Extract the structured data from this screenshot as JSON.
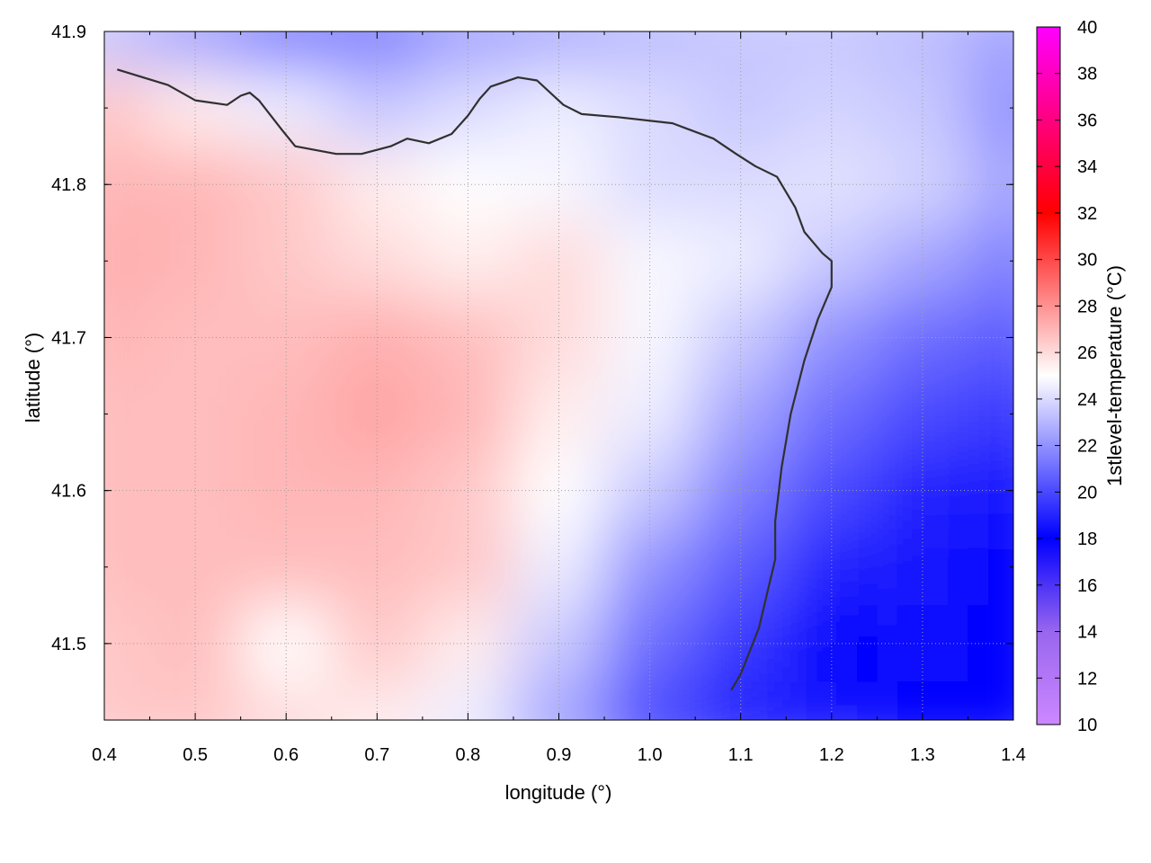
{
  "chart_data": {
    "type": "heatmap",
    "title": "",
    "xlabel": "longitude (°)",
    "ylabel": "latitude (°)",
    "colorbar_label": "1stlevel-temperature (°C)",
    "xlim": [
      0.4,
      1.4
    ],
    "ylim": [
      41.45,
      41.9
    ],
    "zlim": [
      10,
      40
    ],
    "x_ticks": [
      "0.4",
      "0.5",
      "0.6",
      "0.7",
      "0.8",
      "0.9",
      "1.0",
      "1.1",
      "1.2",
      "1.3",
      "1.4"
    ],
    "y_ticks": [
      "41.5",
      "41.6",
      "41.7",
      "41.8",
      "41.9"
    ],
    "colorbar_ticks": [
      "10",
      "12",
      "14",
      "16",
      "18",
      "20",
      "22",
      "24",
      "26",
      "28",
      "30",
      "32",
      "34",
      "36",
      "38",
      "40"
    ],
    "colormap": [
      {
        "value": 10,
        "color": "#cc88ff"
      },
      {
        "value": 14,
        "color": "#9966ee"
      },
      {
        "value": 18,
        "color": "#0000ff"
      },
      {
        "value": 25,
        "color": "#ffffff"
      },
      {
        "value": 32,
        "color": "#ff0000"
      },
      {
        "value": 40,
        "color": "#ff00ff"
      }
    ],
    "grid": true,
    "grid_lons": [
      0.4,
      0.5,
      0.6,
      0.7,
      0.8,
      0.9,
      1.0,
      1.1,
      1.2,
      1.3,
      1.4
    ],
    "grid_lats": [
      41.9,
      41.85,
      41.8,
      41.75,
      41.7,
      41.65,
      41.6,
      41.55,
      41.5,
      41.45
    ],
    "temperature_grid": [
      [
        23.5,
        22.5,
        21.5,
        21.5,
        22.5,
        22.8,
        23.2,
        23.5,
        23.5,
        23.2,
        22.5
      ],
      [
        26.5,
        25.5,
        24.5,
        23.5,
        24.0,
        24.5,
        24.0,
        23.5,
        23.8,
        23.5,
        22.0
      ],
      [
        27.0,
        27.0,
        26.5,
        25.5,
        25.0,
        24.8,
        24.0,
        24.0,
        24.2,
        23.8,
        22.5
      ],
      [
        27.2,
        27.0,
        26.5,
        26.0,
        25.5,
        26.0,
        24.8,
        24.5,
        23.5,
        22.5,
        21.5
      ],
      [
        27.0,
        26.8,
        26.8,
        27.2,
        26.8,
        26.0,
        24.8,
        23.5,
        22.0,
        21.0,
        20.5
      ],
      [
        26.8,
        26.8,
        27.0,
        27.5,
        27.0,
        25.5,
        24.5,
        22.5,
        21.0,
        20.0,
        19.5
      ],
      [
        26.8,
        26.8,
        27.0,
        27.0,
        26.5,
        25.0,
        23.5,
        21.5,
        20.0,
        19.0,
        18.5
      ],
      [
        26.8,
        26.8,
        26.8,
        26.8,
        26.5,
        24.5,
        22.0,
        20.5,
        19.0,
        18.5,
        18.0
      ],
      [
        26.5,
        26.8,
        25.0,
        26.5,
        25.5,
        23.5,
        21.0,
        19.5,
        18.0,
        18.2,
        18.0
      ],
      [
        26.5,
        26.5,
        26.0,
        25.5,
        24.5,
        22.5,
        20.0,
        19.0,
        18.5,
        18.0,
        18.0
      ]
    ],
    "contours": [
      [
        [
          0.415,
          41.875
        ],
        [
          0.47,
          41.865
        ],
        [
          0.5,
          41.855
        ],
        [
          0.535,
          41.852
        ],
        [
          0.55,
          41.858
        ],
        [
          0.56,
          41.86
        ],
        [
          0.57,
          41.855
        ],
        [
          0.595,
          41.836
        ],
        [
          0.61,
          41.825
        ],
        [
          0.655,
          41.82
        ],
        [
          0.683,
          41.82
        ],
        [
          0.715,
          41.825
        ],
        [
          0.733,
          41.83
        ],
        [
          0.757,
          41.827
        ],
        [
          0.782,
          41.833
        ],
        [
          0.8,
          41.845
        ],
        [
          0.813,
          41.856
        ],
        [
          0.825,
          41.864
        ],
        [
          0.855,
          41.87
        ],
        [
          0.876,
          41.868
        ],
        [
          0.905,
          41.852
        ],
        [
          0.925,
          41.846
        ],
        [
          0.965,
          41.844
        ],
        [
          1.025,
          41.84
        ],
        [
          1.07,
          41.83
        ],
        [
          1.095,
          41.82
        ],
        [
          1.116,
          41.812
        ],
        [
          1.14,
          41.805
        ],
        [
          1.16,
          41.785
        ],
        [
          1.17,
          41.769
        ],
        [
          1.19,
          41.755
        ],
        [
          1.2,
          41.75
        ],
        [
          1.2,
          41.733
        ],
        [
          1.185,
          41.712
        ],
        [
          1.17,
          41.685
        ],
        [
          1.155,
          41.65
        ],
        [
          1.145,
          41.615
        ],
        [
          1.138,
          41.58
        ],
        [
          1.138,
          41.555
        ],
        [
          1.13,
          41.535
        ],
        [
          1.12,
          41.51
        ],
        [
          1.11,
          41.495
        ],
        [
          1.1,
          41.48
        ],
        [
          1.09,
          41.47
        ]
      ]
    ]
  }
}
